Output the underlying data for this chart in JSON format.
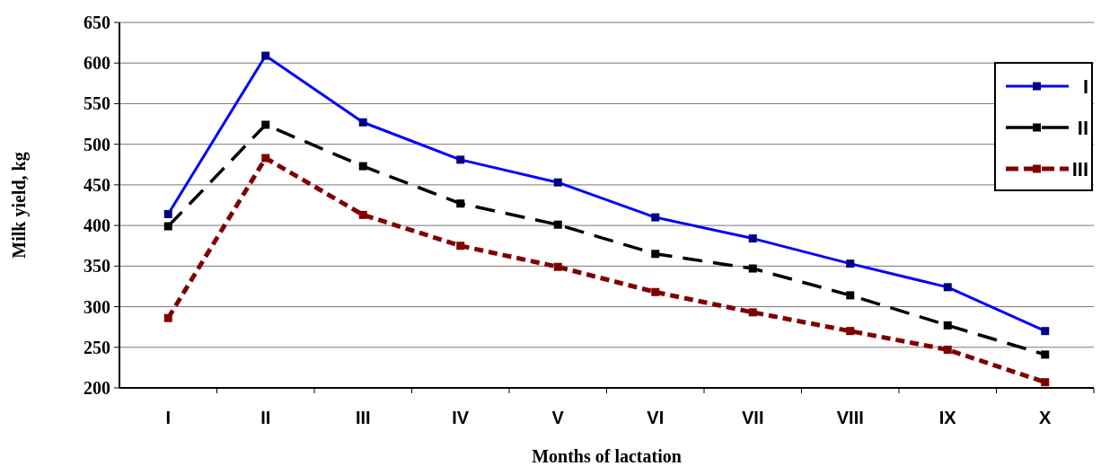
{
  "chart_data": {
    "type": "line",
    "xlabel": "Months of lactation",
    "ylabel": "Milk yield, kg",
    "categories": [
      "I",
      "II",
      "III",
      "IV",
      "V",
      "VI",
      "VII",
      "VIII",
      "IX",
      "X"
    ],
    "ylim": [
      200,
      650
    ],
    "yticks": [
      200,
      250,
      300,
      350,
      400,
      450,
      500,
      550,
      600,
      650
    ],
    "grid": "y",
    "legend": "top right",
    "marker": "square",
    "series": [
      {
        "name": "I",
        "color": "#0000ff",
        "line_style": "solid",
        "values": [
          414,
          609,
          527,
          481,
          453,
          410,
          384,
          353,
          324,
          270
        ]
      },
      {
        "name": "II",
        "color": "#000000",
        "line_style": "dashed",
        "values": [
          399,
          524,
          473,
          427,
          401,
          365,
          347,
          314,
          277,
          241
        ]
      },
      {
        "name": "III",
        "color": "#800000",
        "line_style": "dotted",
        "values": [
          286,
          483,
          413,
          375,
          349,
          318,
          293,
          270,
          247,
          207
        ]
      }
    ]
  }
}
